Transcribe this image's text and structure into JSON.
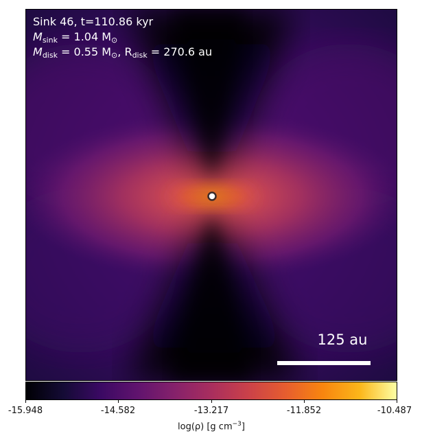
{
  "annotation": {
    "line1": "Sink 46, t=110.86 kyr",
    "msink_symbol": "M",
    "msink_sub": "sink",
    "msink_value": " = 1.04 M",
    "msun_sub": "⊙",
    "mdisk_symbol": "M",
    "mdisk_sub": "disk",
    "mdisk_value": " = 0.55 M",
    "rdisk_symbol": ", R",
    "rdisk_sub": "disk",
    "rdisk_value": " = 270.6 au"
  },
  "scalebar": {
    "label": "125 au"
  },
  "colorbar": {
    "ticks": [
      "-15.948",
      "-14.582",
      "-13.217",
      "-11.852",
      "-10.487"
    ],
    "label_main": "log(ρ) [g cm",
    "label_sup": "−3",
    "label_end": "]"
  }
}
